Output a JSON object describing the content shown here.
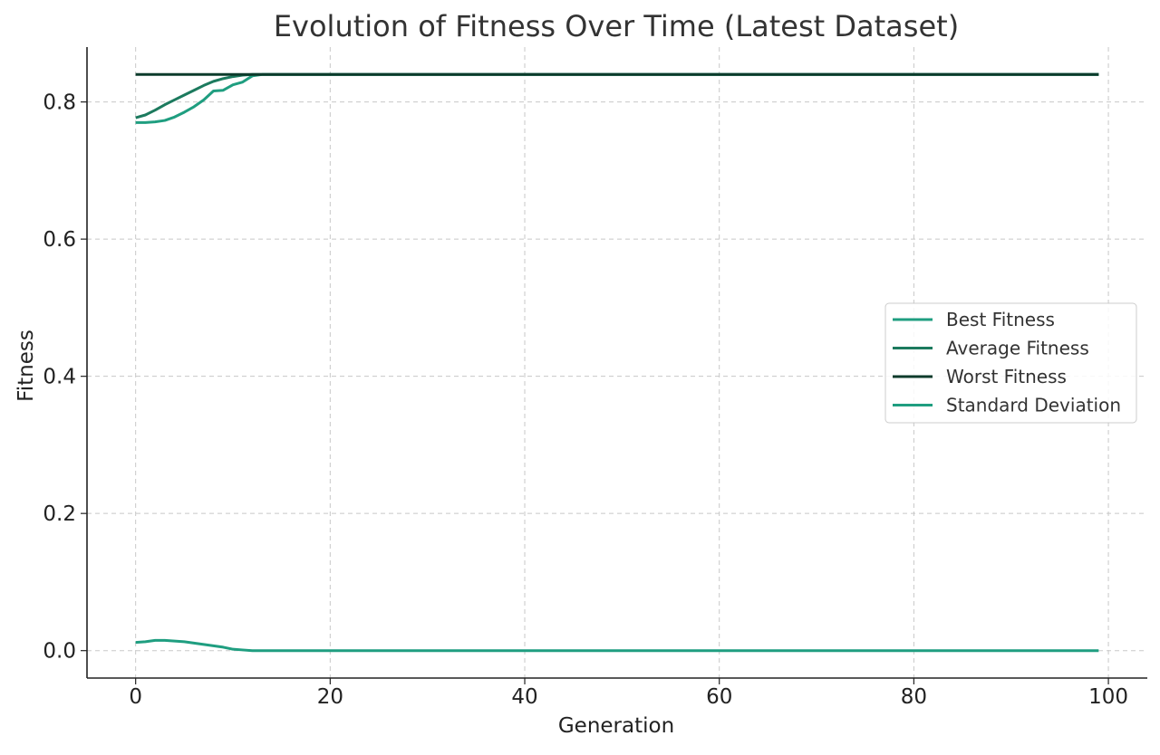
{
  "chart_data": {
    "type": "line",
    "title": "Evolution of Fitness Over Time (Latest Dataset)",
    "xlabel": "Generation",
    "ylabel": "Fitness",
    "xlim": [
      -5,
      104
    ],
    "ylim": [
      -0.04,
      0.88
    ],
    "xticks": [
      0,
      20,
      40,
      60,
      80,
      100
    ],
    "yticks": [
      0.0,
      0.2,
      0.4,
      0.6,
      0.8
    ],
    "xtick_labels": [
      "0",
      "20",
      "40",
      "60",
      "80",
      "100"
    ],
    "ytick_labels": [
      "0.0",
      "0.2",
      "0.4",
      "0.6",
      "0.8"
    ],
    "grid": true,
    "legend_position": "center-right",
    "legend_entries": [
      "Best Fitness",
      "Average Fitness",
      "Worst Fitness",
      "Standard Deviation"
    ],
    "x_range": [
      0,
      99
    ],
    "series": [
      {
        "name": "Best Fitness",
        "color": "#1f9e80",
        "points": [
          [
            0,
            0.77
          ],
          [
            1,
            0.77
          ],
          [
            2,
            0.771
          ],
          [
            3,
            0.773
          ],
          [
            4,
            0.778
          ],
          [
            5,
            0.785
          ],
          [
            6,
            0.793
          ],
          [
            7,
            0.803
          ],
          [
            8,
            0.816
          ],
          [
            9,
            0.817
          ],
          [
            10,
            0.825
          ],
          [
            11,
            0.829
          ],
          [
            12,
            0.838
          ],
          [
            13,
            0.84
          ],
          [
            99,
            0.84
          ]
        ]
      },
      {
        "name": "Average Fitness",
        "color": "#1c7a5e",
        "points": [
          [
            0,
            0.777
          ],
          [
            1,
            0.781
          ],
          [
            2,
            0.788
          ],
          [
            3,
            0.796
          ],
          [
            4,
            0.803
          ],
          [
            5,
            0.81
          ],
          [
            6,
            0.817
          ],
          [
            7,
            0.824
          ],
          [
            8,
            0.83
          ],
          [
            9,
            0.834
          ],
          [
            10,
            0.837
          ],
          [
            11,
            0.839
          ],
          [
            12,
            0.84
          ],
          [
            99,
            0.84
          ]
        ]
      },
      {
        "name": "Worst Fitness",
        "color": "#0c3b2b",
        "points": [
          [
            0,
            0.84
          ],
          [
            99,
            0.84
          ]
        ]
      },
      {
        "name": "Standard Deviation",
        "color": "#1f9e80",
        "points": [
          [
            0,
            0.012
          ],
          [
            1,
            0.013
          ],
          [
            2,
            0.015
          ],
          [
            3,
            0.015
          ],
          [
            4,
            0.014
          ],
          [
            5,
            0.013
          ],
          [
            6,
            0.011
          ],
          [
            7,
            0.009
          ],
          [
            8,
            0.007
          ],
          [
            9,
            0.005
          ],
          [
            10,
            0.002
          ],
          [
            11,
            0.001
          ],
          [
            12,
            0.0
          ],
          [
            99,
            0.0
          ]
        ]
      }
    ]
  }
}
